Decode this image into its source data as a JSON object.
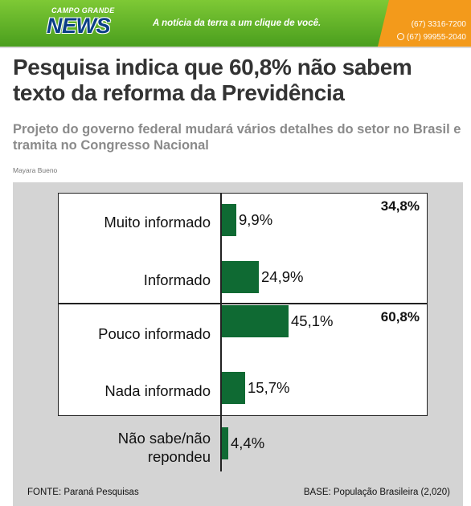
{
  "site": {
    "logo_small": "CAMPO GRANDE",
    "logo_main": "NEWS",
    "tagline": "A notícia da terra a um clique de você.",
    "phone": "(67) 3316-7200",
    "whatsapp": "(67) 99955-2040",
    "colors": {
      "green": "#5cb02a",
      "orange": "#f39a1b",
      "navy": "#0b3f86"
    }
  },
  "article": {
    "title": "Pesquisa indica que 60,8% não sabem texto da reforma da Previdência",
    "subtitle": "Projeto do governo federal mudará vários detalhes do setor no Brasil e tramita no Congresso Nacional",
    "author": "Mayara Bueno"
  },
  "chart_data": {
    "type": "bar",
    "orientation": "horizontal",
    "categories": [
      "Muito informado",
      "Informado",
      "Pouco informado",
      "Nada informado",
      "Não sabe/não repondeu"
    ],
    "values": [
      9.9,
      24.9,
      45.1,
      15.7,
      4.4
    ],
    "value_labels": [
      "9,9%",
      "24,9%",
      "45,1%",
      "15,7%",
      "4,4%"
    ],
    "group_totals": [
      "34,8%",
      "60,8%"
    ],
    "bar_color": "#0f6a33",
    "source": "FONTE: Paraná Pesquisas",
    "base": "BASE: População Brasileira (2,020)"
  }
}
